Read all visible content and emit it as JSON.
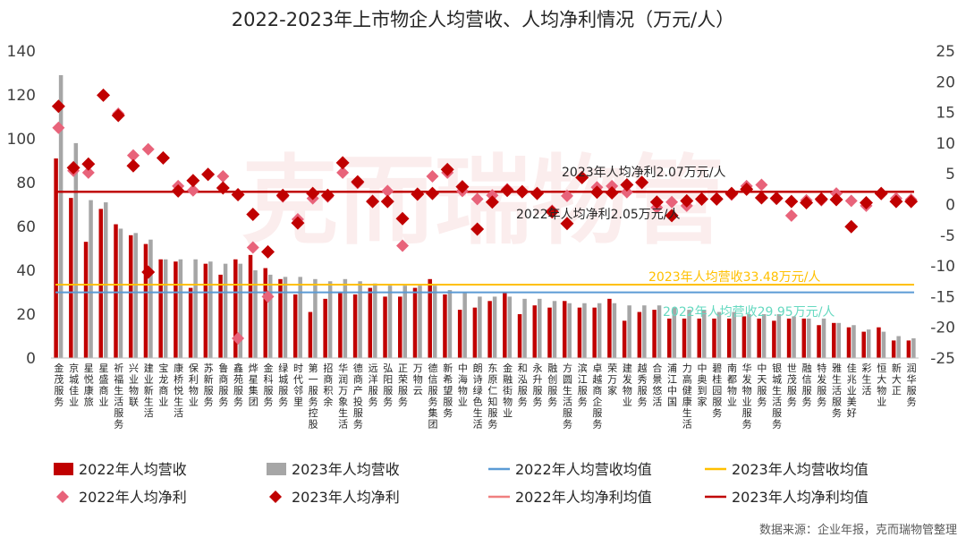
{
  "title": "2022-2023年上市物企人均营收、人均净利情况（万元/人）",
  "source": "数据来源：企业年报，克而瑞物管整理",
  "watermark": "克而瑞物管",
  "colors": {
    "rev2022": "#c00000",
    "rev2023": "#a6a6a6",
    "rev2022_avg": "#5b9bd5",
    "rev2023_avg": "#ffc000",
    "np2022": "#e8637a",
    "np2023": "#c00000",
    "np2022_avg": "#f08080",
    "np2023_avg": "#c00000",
    "anno_np": "#262626",
    "anno_rev2023": "#ffc000",
    "anno_rev2022": "#66d9c0"
  },
  "chart_data": {
    "type": "bar",
    "categories": [
      "金茂服务",
      "京城佳业",
      "星悦康旅",
      "星盛商业",
      "祈福生活服务",
      "兴业物联",
      "建业新生活",
      "宝龙商业",
      "康桥悦生活",
      "保利物业",
      "苏新服务",
      "鲁商服务",
      "鑫苑服务",
      "烨星集团",
      "金科服务",
      "绿城服务",
      "时代邻里",
      "第一服务控股",
      "招商积余",
      "华润万象生活",
      "德商产投服务",
      "远洋服务",
      "弘阳服务",
      "正荣服务",
      "万物云",
      "德信服务集团",
      "新希望服务",
      "中海物业",
      "朗诗绿色生活",
      "东原仁知服务",
      "金融街物业",
      "和泓服务",
      "永升服务",
      "融创服务",
      "方圆生活服务",
      "滨江服务",
      "卓越商企服务",
      "荣万家",
      "建发物业",
      "越秀服务",
      "合景悠活",
      "浦江中国",
      "力高健康生活",
      "中奥到家",
      "碧桂园服务",
      "南都物业",
      "华发物业服务",
      "中天服务",
      "银城生活服务",
      "世茂服务",
      "融信服务",
      "特发服务",
      "雅生活服务",
      "佳兆业美好",
      "彩生活",
      "恒大物业",
      "新大正",
      "润华服务"
    ],
    "y_left": {
      "min": 0,
      "max": 140,
      "ticks": [
        0,
        20,
        40,
        60,
        80,
        100,
        120,
        140
      ]
    },
    "y_right": {
      "min": -25,
      "max": 25,
      "ticks": [
        -25,
        -20,
        -15,
        -10,
        -5,
        0,
        5,
        10,
        15,
        20,
        25
      ]
    },
    "series": [
      {
        "name": "2022年人均营收",
        "kind": "bar",
        "axis": "left",
        "values": [
          91,
          73,
          53,
          68,
          61,
          56,
          52,
          45,
          44,
          32,
          43,
          38,
          45,
          47,
          41,
          36,
          29,
          21,
          27,
          30,
          29,
          32,
          28,
          28,
          32,
          36,
          29,
          22,
          23,
          26,
          30,
          20,
          24,
          23,
          26,
          23,
          23,
          27,
          17,
          21,
          22,
          18,
          18,
          18,
          18,
          18,
          19,
          18,
          17,
          18,
          18,
          15,
          16,
          14,
          12,
          14,
          8,
          8
        ]
      },
      {
        "name": "2023年人均营收",
        "kind": "bar",
        "axis": "left",
        "values": [
          129,
          98,
          72,
          71,
          59,
          57,
          54,
          45,
          45,
          45,
          44,
          43,
          43,
          40,
          38,
          37,
          37,
          36,
          35,
          36,
          35,
          34,
          33,
          33,
          33,
          33,
          31,
          30,
          28,
          28,
          28,
          27,
          27,
          26,
          25,
          25,
          25,
          25,
          24,
          24,
          24,
          23,
          22,
          22,
          21,
          21,
          20,
          20,
          20,
          19,
          18,
          18,
          16,
          15,
          13,
          12,
          10,
          9
        ]
      },
      {
        "name": "2022年人均净利",
        "kind": "marker",
        "axis": "right",
        "values": [
          12.5,
          5.5,
          5.2,
          17.8,
          14.8,
          8,
          9,
          7.5,
          3,
          2.3,
          5,
          4.6,
          -21.8,
          -7,
          -15,
          1.3,
          -2.4,
          1,
          1.3,
          5.2,
          3.5,
          0.6,
          2.2,
          -6.7,
          1.6,
          4.6,
          5.2,
          2.2,
          0.9,
          1.5,
          2.5,
          2,
          1.8,
          -1,
          1.4,
          4.4,
          2.8,
          3,
          2,
          3.5,
          -0.5,
          0.4,
          -0.2,
          0.8,
          1,
          1.6,
          3,
          3.2,
          1.1,
          -1.8,
          0.7,
          0.7,
          1.8,
          0.6,
          -0.2,
          1.7,
          1,
          0.8
        ]
      },
      {
        "name": "2023年人均净利",
        "kind": "marker",
        "axis": "right",
        "values": [
          16,
          6,
          6.6,
          17.8,
          14.5,
          6.3,
          -11,
          7.6,
          2.2,
          3.9,
          4.9,
          2.7,
          1.6,
          -1.6,
          -7.7,
          1.5,
          -3,
          1.8,
          1.5,
          6.8,
          3.7,
          0.5,
          0.5,
          -2.3,
          1.7,
          1.8,
          5.7,
          2.9,
          -4,
          0.4,
          2.3,
          2.1,
          1.8,
          -1.2,
          -3.1,
          4.4,
          2,
          1.9,
          3.2,
          3.6,
          0.4,
          -1.8,
          0.6,
          0.9,
          0.9,
          1.8,
          2.5,
          1.1,
          1,
          0.5,
          0.3,
          0.9,
          0.8,
          -3.6,
          0.3,
          1.8,
          0.5,
          0.5
        ]
      },
      {
        "name": "2022年人均营收均值",
        "kind": "hline",
        "axis": "left",
        "value": 29.95
      },
      {
        "name": "2023年人均营收均值",
        "kind": "hline",
        "axis": "left",
        "value": 33.48
      },
      {
        "name": "2022年人均净利均值",
        "kind": "hline",
        "axis": "right",
        "value": 2.05
      },
      {
        "name": "2023年人均净利均值",
        "kind": "hline",
        "axis": "right",
        "value": 2.07
      }
    ],
    "annotations": {
      "np2023": "2023年人均净利2.07万元/人",
      "np2022": "2022年人均净利2.05万元/人",
      "rev2023": "2023年人均营收33.48万元/人",
      "rev2022": "2022年人均营收29.95万元/人"
    },
    "legend": [
      {
        "label": "2022年人均营收",
        "kind": "bar",
        "color_key": "rev2022"
      },
      {
        "label": "2023年人均营收",
        "kind": "bar",
        "color_key": "rev2023"
      },
      {
        "label": "2022年人均营收均值",
        "kind": "line",
        "color_key": "rev2022_avg"
      },
      {
        "label": "2023年人均营收均值",
        "kind": "line",
        "color_key": "rev2023_avg"
      },
      {
        "label": "2022年人均净利",
        "kind": "diamond",
        "color_key": "np2022"
      },
      {
        "label": "2023年人均净利",
        "kind": "diamond",
        "color_key": "np2023"
      },
      {
        "label": "2022年人均净利均值",
        "kind": "line",
        "color_key": "np2022_avg"
      },
      {
        "label": "2023年人均净利均值",
        "kind": "line",
        "color_key": "np2023_avg"
      }
    ],
    "legend_position": "bottom",
    "grid": false
  }
}
